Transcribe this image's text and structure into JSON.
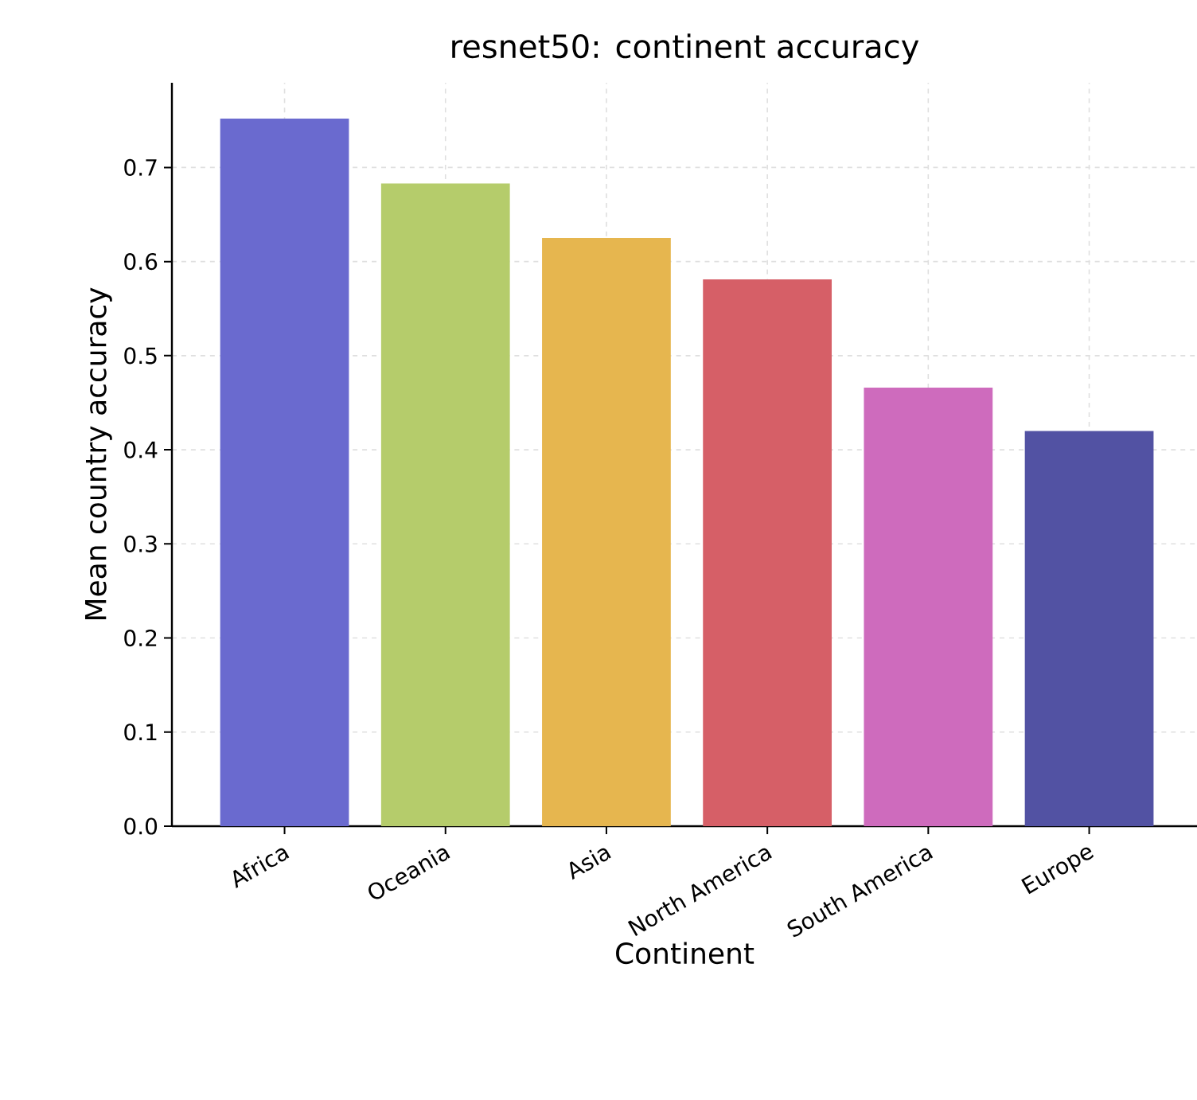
{
  "chart_data": {
    "type": "bar",
    "title": "resnet50: continent accuracy",
    "xlabel": "Continent",
    "ylabel": "Mean country accuracy",
    "categories": [
      "Africa",
      "Oceania",
      "Asia",
      "North America",
      "South America",
      "Europe"
    ],
    "values": [
      0.752,
      0.683,
      0.625,
      0.581,
      0.466,
      0.42
    ],
    "colors": [
      "#6a6acf",
      "#b5cc6b",
      "#e6b64f",
      "#d65f67",
      "#ce6bbd",
      "#5252a3"
    ],
    "ylim": [
      0,
      0.79
    ],
    "yticks": [
      {
        "value": 0,
        "label": "0.0"
      },
      0.1,
      0.2,
      0.3,
      0.4,
      0.5,
      0.6,
      0.7
    ],
    "grid": true
  }
}
